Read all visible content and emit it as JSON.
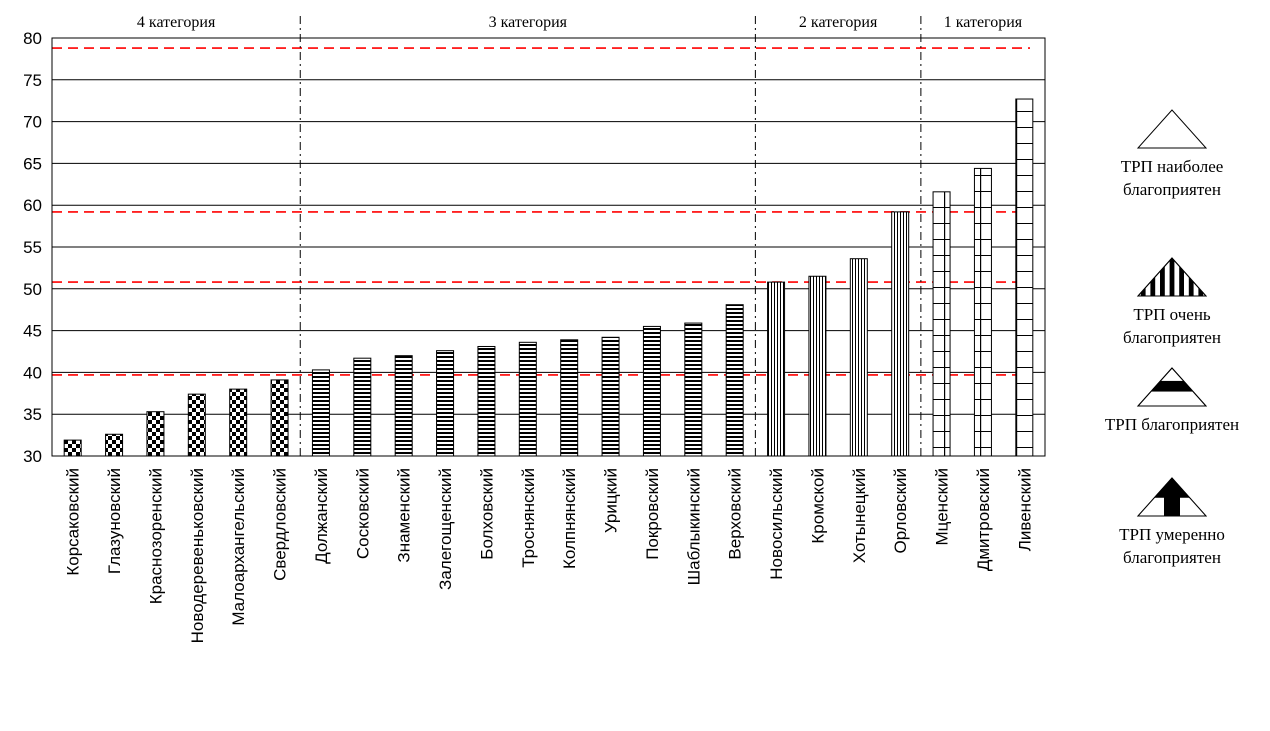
{
  "chart_data": {
    "type": "bar",
    "categories": [
      "Корсаковский",
      "Глазуновский",
      "Краснозоренский",
      "Новодеревеньковский",
      "Малоархангельский",
      "Свердловский",
      "Должанский",
      "Сосковский",
      "Знаменский",
      "Залегощенский",
      "Болховский",
      "Троснянский",
      "Колпнянский",
      "Урицкий",
      "Покровский",
      "Шаблыкинский",
      "Верховский",
      "Новосильский",
      "Кромской",
      "Хотынецкий",
      "Орловский",
      "Мценский",
      "Дмитровский",
      "Ливенский"
    ],
    "values": [
      31.9,
      32.6,
      35.3,
      37.4,
      38.0,
      39.1,
      40.3,
      41.7,
      42.0,
      42.6,
      43.1,
      43.6,
      43.9,
      44.2,
      45.5,
      45.9,
      48.1,
      50.8,
      51.5,
      53.6,
      59.2,
      61.6,
      64.4,
      72.7
    ],
    "patterns": [
      "checker",
      "checker",
      "checker",
      "checker",
      "checker",
      "checker",
      "hstripe",
      "hstripe",
      "hstripe",
      "hstripe",
      "hstripe",
      "hstripe",
      "hstripe",
      "hstripe",
      "hstripe",
      "hstripe",
      "hstripe",
      "vstripe",
      "vstripe",
      "vstripe",
      "vstripe",
      "grid",
      "grid",
      "grid"
    ],
    "ylim": [
      30,
      80
    ],
    "yticks": [
      "30",
      "35",
      "40",
      "45",
      "50",
      "55",
      "60",
      "65",
      "70",
      "75",
      "80"
    ],
    "grid": true,
    "thresholds": [
      39.7,
      50.8,
      59.2,
      78.8
    ],
    "section_dividers_after": [
      5,
      16,
      20
    ],
    "sections": [
      {
        "label": "4 категория",
        "from": 0,
        "to": 5
      },
      {
        "label": "3 категория",
        "from": 6,
        "to": 16
      },
      {
        "label": "2 категория",
        "from": 17,
        "to": 20
      },
      {
        "label": "1 категория",
        "from": 21,
        "to": 23
      }
    ],
    "colors": {
      "bar_stroke": "#000000",
      "grid": "#000000",
      "threshold": "#ff0000"
    }
  },
  "legend": [
    {
      "label_lines": [
        "ТРП наиболее",
        "благоприятен"
      ],
      "icon": "triangle-empty-icon"
    },
    {
      "label_lines": [
        "ТРП очень",
        "благоприятен"
      ],
      "icon": "triangle-striped-icon"
    },
    {
      "label_lines": [
        "ТРП благоприятен"
      ],
      "icon": "triangle-band-icon"
    },
    {
      "label_lines": [
        "ТРП умеренно",
        "благоприятен"
      ],
      "icon": "triangle-split-icon"
    }
  ]
}
